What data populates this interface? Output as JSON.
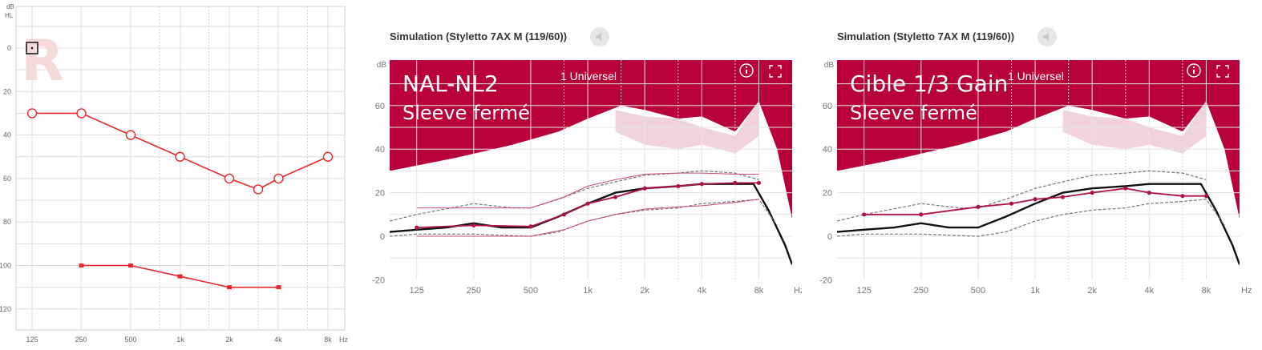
{
  "audiogram": {
    "unit_top": "dB",
    "unit_bottom": "HL",
    "ear_marker": "R",
    "x_unit": "Hz",
    "y_ticks": [
      0,
      20,
      40,
      60,
      80,
      100,
      120
    ],
    "x_ticks": [
      "125",
      "250",
      "500",
      "1k",
      "2k",
      "4k",
      "8k"
    ]
  },
  "simulations": [
    {
      "title": "Simulation (Styletto 7AX M (119/60))",
      "overlay_line1": "NAL-NL2",
      "overlay_line2": "Sleeve fermé",
      "program_label": "1 Universel"
    },
    {
      "title": "Simulation (Styletto 7AX M (119/60))",
      "overlay_line1": "Cible 1/3 Gain",
      "overlay_line2": "Sleeve fermé",
      "program_label": "1 Universel"
    }
  ],
  "sim_axes": {
    "y_unit": "dB",
    "x_unit": "Hz",
    "y_ticks": [
      -20,
      0,
      20,
      40,
      60
    ],
    "x_ticks": [
      "125",
      "250",
      "500",
      "1k",
      "2k",
      "4k",
      "8k"
    ]
  },
  "colors": {
    "audiogram_red": "#e8282b",
    "sim_crimson": "#b8003a",
    "target_magenta": "#b0104e",
    "pink_fill": "#f1d3de",
    "grid": "#dcdcdc"
  },
  "icons": {
    "info": "info-icon",
    "expand": "expand-icon",
    "speaker": "speaker-icon",
    "ear_cursor": "cursor-icon"
  },
  "chart_data": [
    {
      "type": "line",
      "name": "audiogram",
      "x_scale": "log",
      "y_inverted": true,
      "ylim": [
        -10,
        130
      ],
      "ylabel": "dB HL",
      "xlabel": "Hz",
      "series": [
        {
          "x": [
            125,
            250,
            500,
            1000,
            2000,
            3000,
            4000,
            8000
          ],
          "y": [
            30,
            30,
            40,
            50,
            60,
            65,
            60,
            50
          ]
        },
        {
          "x": [
            250,
            500,
            1000,
            2000,
            4000
          ],
          "y": [
            100,
            100,
            105,
            110,
            110
          ]
        }
      ]
    },
    {
      "type": "line",
      "name": "simulation-nal-nl2",
      "x_scale": "log",
      "xlim": [
        90,
        12000
      ],
      "ylim": [
        -20,
        70
      ],
      "series": [
        {
          "x": [
            90,
            200,
            400,
            700,
            1000,
            1500,
            2000,
            3000,
            4000,
            6000,
            8000,
            10000,
            12000
          ],
          "y": [
            30,
            36,
            42,
            48,
            54,
            60,
            58,
            54,
            55,
            48,
            62,
            40,
            8
          ]
        },
        {
          "x": [
            1400,
            2000,
            3000,
            4000,
            6000,
            8000
          ],
          "y": [
            58,
            55,
            54,
            50,
            46,
            62
          ]
        },
        {
          "x": [
            1400,
            2000,
            3000,
            4000,
            6000,
            8000
          ],
          "y": [
            48,
            42,
            40,
            42,
            38,
            46
          ]
        },
        {
          "x": [
            90,
            125,
            180,
            250,
            350,
            500,
            700,
            1000,
            1400,
            2000,
            3000,
            4000,
            6000,
            7500,
            9000,
            11000,
            12000
          ],
          "y": [
            2,
            3,
            4,
            6,
            4,
            4,
            9,
            15,
            20,
            22,
            23,
            24,
            24,
            24,
            12,
            -4,
            -13
          ]
        },
        {
          "x": [
            90,
            125,
            250,
            400,
            500,
            700,
            1000,
            1400,
            2000,
            3000,
            4000,
            6000,
            8000
          ],
          "y": [
            7,
            10,
            15,
            13,
            13,
            17,
            22,
            25,
            28,
            29,
            30,
            29,
            26
          ]
        },
        {
          "x": [
            90,
            125,
            250,
            500,
            700,
            1000,
            1400,
            2000,
            3000,
            4000,
            6000,
            8000,
            10000
          ],
          "y": [
            0,
            1,
            1,
            0,
            2,
            7,
            10,
            12,
            13,
            15,
            16,
            17,
            5
          ]
        },
        {
          "x": [
            125,
            250,
            500,
            750,
            1000,
            1400,
            2000,
            3000,
            4000,
            6000,
            8000
          ],
          "y": [
            4,
            5,
            4.5,
            10,
            15,
            18,
            22,
            23,
            24,
            24.5,
            24.5
          ]
        },
        {
          "x": [
            125,
            500,
            750,
            1000,
            1400,
            2000,
            3000,
            4000,
            6000,
            8000
          ],
          "y": [
            13,
            13,
            18,
            23,
            26,
            28.5,
            29,
            29,
            28.5,
            28.5
          ]
        },
        {
          "x": [
            125,
            250,
            500,
            750,
            1000,
            1400,
            2000,
            3000,
            4000,
            6000,
            8000
          ],
          "y": [
            0,
            0,
            0,
            3,
            7,
            10,
            12.5,
            13.5,
            14,
            15.5,
            17
          ]
        }
      ]
    },
    {
      "type": "line",
      "name": "simulation-cible-third-gain",
      "x_scale": "log",
      "xlim": [
        90,
        12000
      ],
      "ylim": [
        -20,
        70
      ],
      "series": [
        {
          "x": [
            90,
            200,
            400,
            700,
            1000,
            1500,
            2000,
            3000,
            4000,
            6000,
            8000,
            10000,
            12000
          ],
          "y": [
            30,
            36,
            42,
            48,
            54,
            60,
            58,
            54,
            55,
            48,
            62,
            40,
            8
          ]
        },
        {
          "x": [
            1400,
            2000,
            3000,
            4000,
            6000,
            8000
          ],
          "y": [
            58,
            55,
            54,
            50,
            46,
            62
          ]
        },
        {
          "x": [
            1400,
            2000,
            3000,
            4000,
            6000,
            8000
          ],
          "y": [
            48,
            42,
            40,
            42,
            38,
            46
          ]
        },
        {
          "x": [
            90,
            125,
            180,
            250,
            350,
            500,
            700,
            1000,
            1400,
            2000,
            3000,
            4000,
            6000,
            7500,
            9000,
            11000,
            12000
          ],
          "y": [
            2,
            3,
            4,
            6,
            4,
            4,
            9,
            15,
            20,
            22,
            23,
            24,
            24,
            24,
            12,
            -4,
            -13
          ]
        },
        {
          "x": [
            90,
            125,
            250,
            400,
            500,
            700,
            1000,
            1400,
            2000,
            3000,
            4000,
            6000,
            8000
          ],
          "y": [
            7,
            10,
            15,
            13,
            13,
            17,
            22,
            25,
            28,
            29,
            30,
            29,
            26
          ]
        },
        {
          "x": [
            90,
            125,
            250,
            500,
            700,
            1000,
            1400,
            2000,
            3000,
            4000,
            6000,
            8000,
            10000
          ],
          "y": [
            0,
            1,
            1,
            0,
            2,
            7,
            10,
            12,
            13,
            15,
            16,
            17,
            5
          ]
        },
        {
          "x": [
            125,
            250,
            500,
            750,
            1000,
            1400,
            2000,
            3000,
            4000,
            6000,
            8000
          ],
          "y": [
            10,
            10,
            13.5,
            15,
            17,
            18,
            20,
            22,
            20,
            18.5,
            18.5
          ]
        }
      ]
    }
  ]
}
